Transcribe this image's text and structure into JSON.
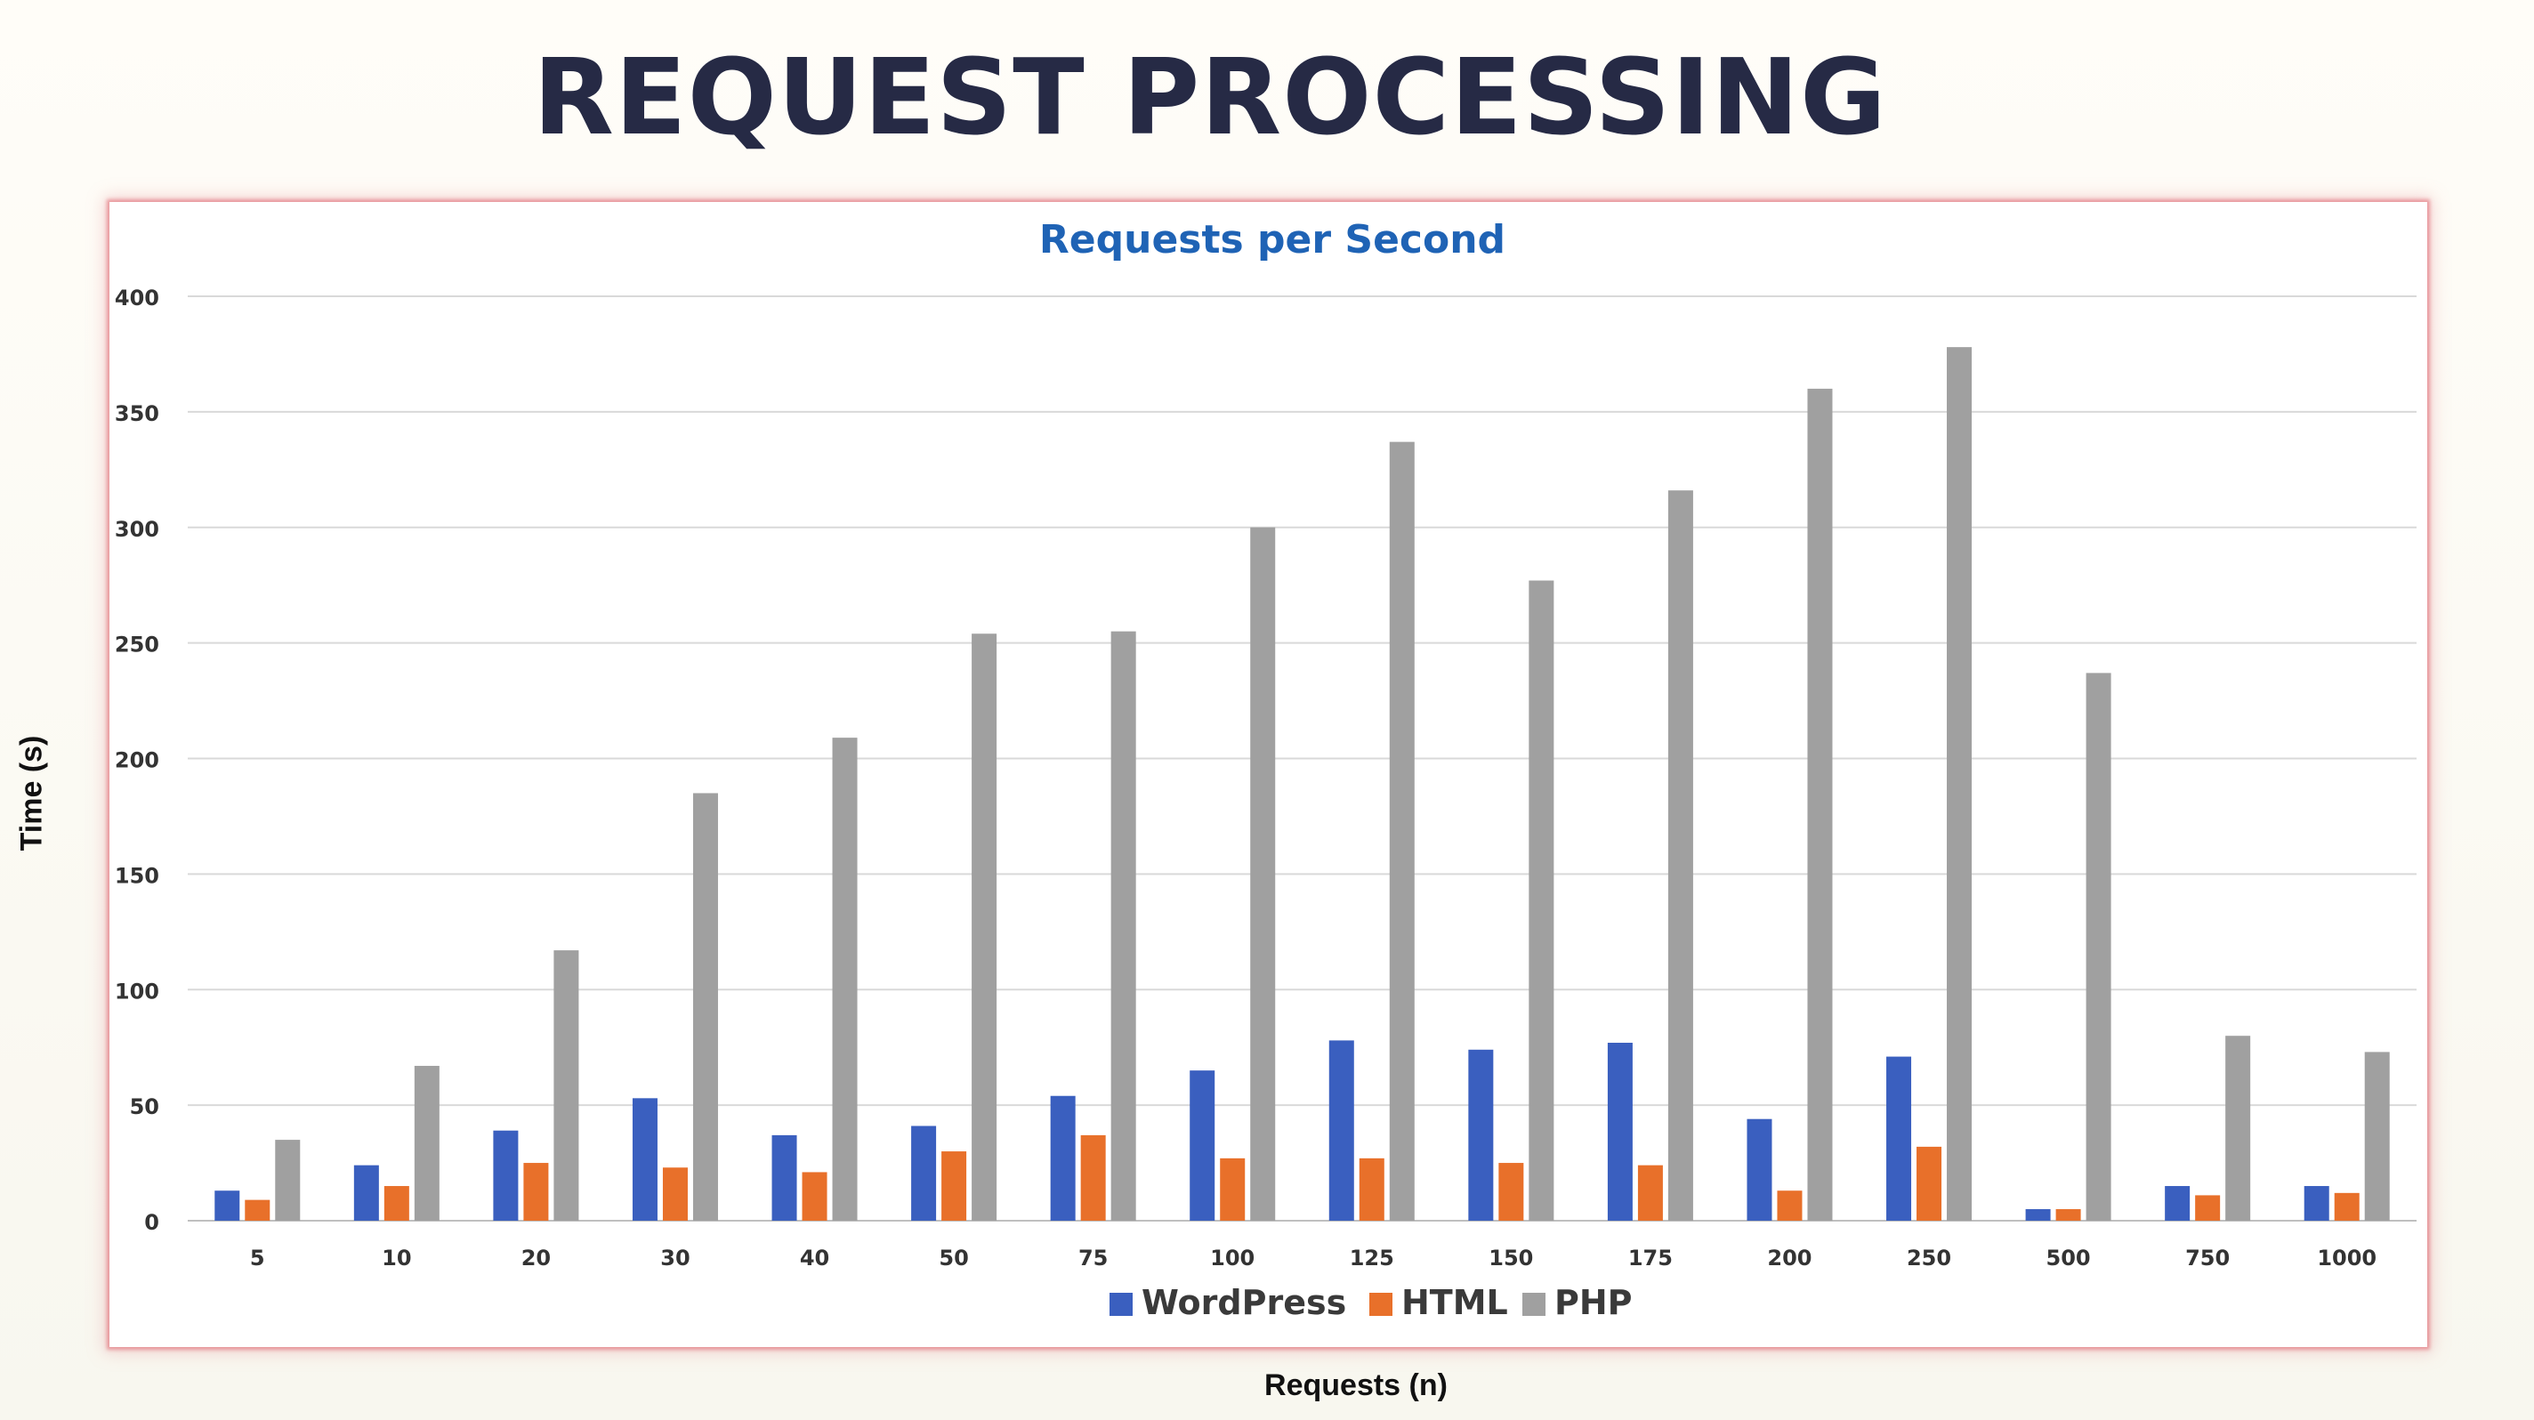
{
  "slide": {
    "title": "REQUEST PROCESSING"
  },
  "chart_data": {
    "type": "bar",
    "title": "Requests per Second",
    "xlabel": "Requests (n)",
    "ylabel": "Time (s)",
    "ylim": [
      0,
      400
    ],
    "yticks": [
      0,
      50,
      100,
      150,
      200,
      250,
      300,
      350,
      400
    ],
    "grid": true,
    "legend": "bottom",
    "categories": [
      "5",
      "10",
      "20",
      "30",
      "40",
      "50",
      "75",
      "100",
      "125",
      "150",
      "175",
      "200",
      "250",
      "500",
      "750",
      "1000"
    ],
    "series": [
      {
        "name": "WordPress",
        "color": "#3a5fbf",
        "values": [
          13,
          24,
          39,
          53,
          37,
          41,
          54,
          65,
          78,
          74,
          77,
          44,
          71,
          5,
          15,
          15
        ]
      },
      {
        "name": "HTML",
        "color": "#e8702a",
        "values": [
          9,
          15,
          25,
          23,
          21,
          30,
          37,
          27,
          27,
          25,
          24,
          13,
          32,
          5,
          11,
          12
        ]
      },
      {
        "name": "PHP",
        "color": "#a0a0a0",
        "values": [
          35,
          67,
          117,
          185,
          209,
          254,
          255,
          300,
          337,
          277,
          316,
          360,
          378,
          237,
          80,
          73
        ]
      }
    ]
  }
}
